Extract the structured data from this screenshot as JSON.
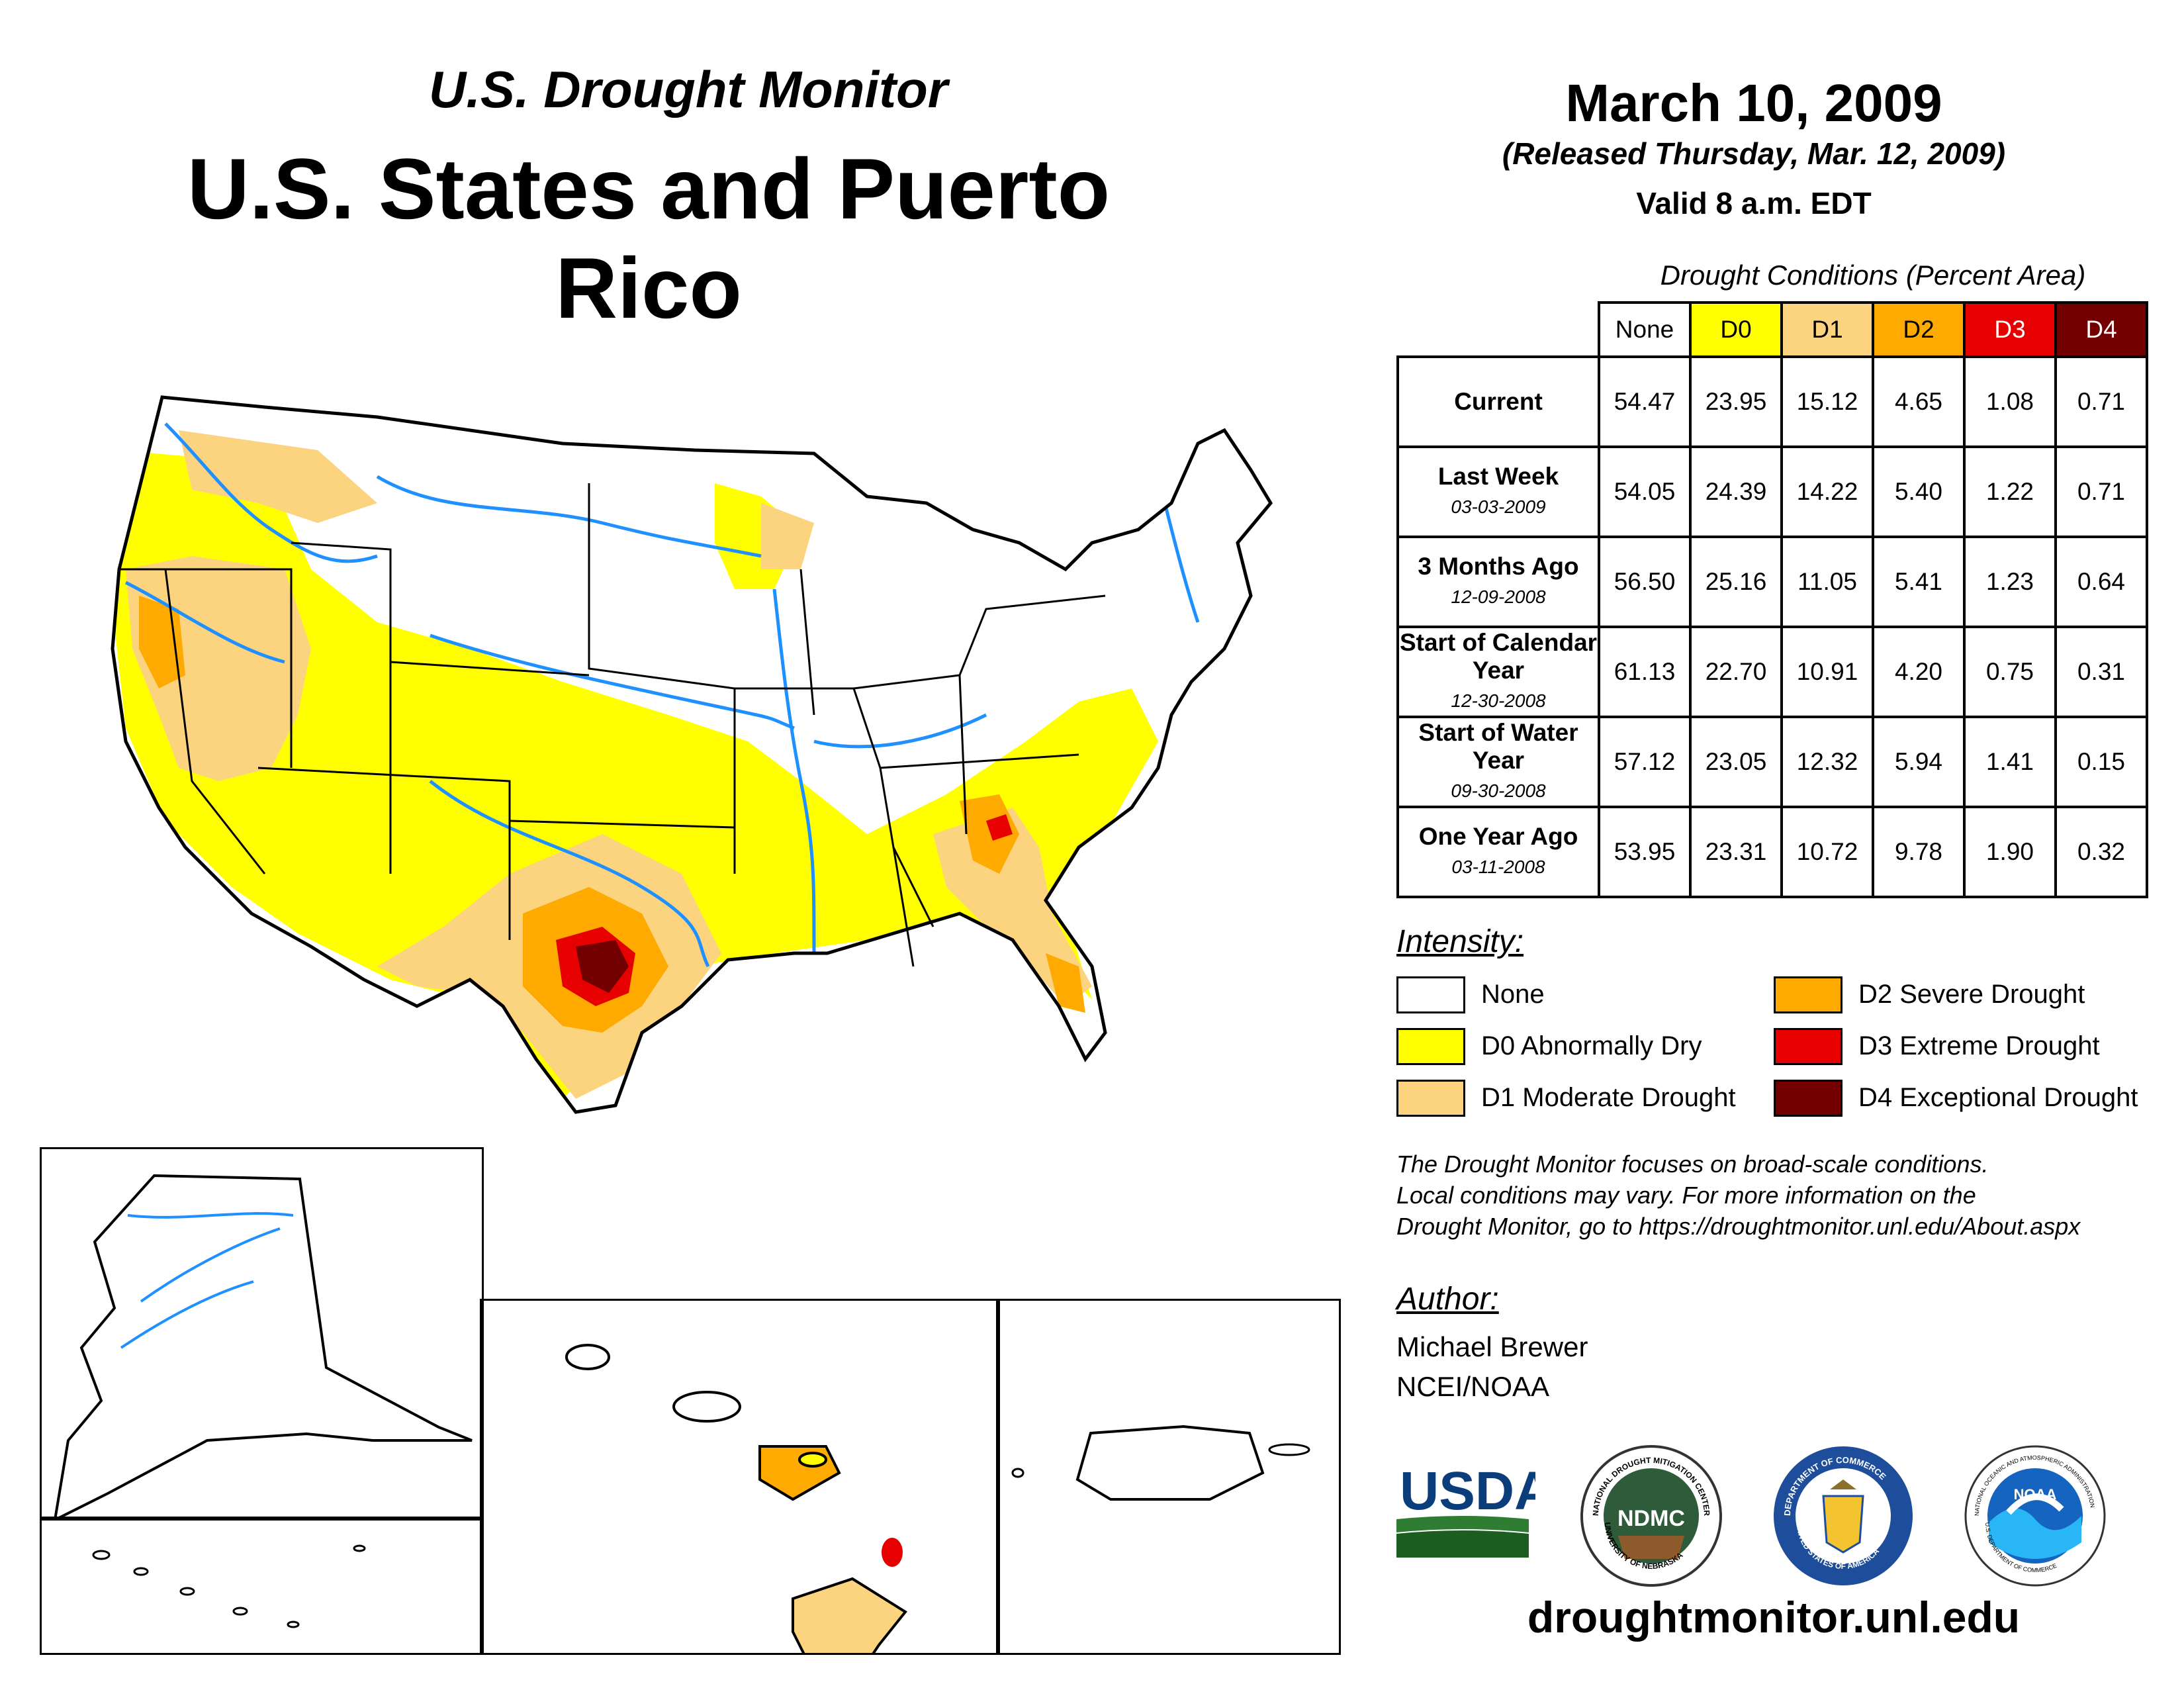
{
  "header": {
    "subtitle": "U.S. Drought Monitor",
    "title": "U.S. States and Puerto Rico",
    "date": "March 10, 2009",
    "released": "(Released Thursday, Mar. 12, 2009)",
    "valid": "Valid 8 a.m. EDT"
  },
  "table": {
    "caption": "Drought Conditions (Percent Area)",
    "columns": [
      "None",
      "D0",
      "D1",
      "D2",
      "D3",
      "D4"
    ],
    "column_colors": [
      "#ffffff",
      "#ffff00",
      "#fcd37f",
      "#ffaa00",
      "#e60000",
      "#730000"
    ],
    "rows": [
      {
        "label": "Current",
        "date": "",
        "values": [
          "54.47",
          "23.95",
          "15.12",
          "4.65",
          "1.08",
          "0.71"
        ]
      },
      {
        "label": "Last Week",
        "date": "03-03-2009",
        "values": [
          "54.05",
          "24.39",
          "14.22",
          "5.40",
          "1.22",
          "0.71"
        ]
      },
      {
        "label": "3 Months Ago",
        "date": "12-09-2008",
        "values": [
          "56.50",
          "25.16",
          "11.05",
          "5.41",
          "1.23",
          "0.64"
        ]
      },
      {
        "label": "Start of Calendar Year",
        "date": "12-30-2008",
        "values": [
          "61.13",
          "22.70",
          "10.91",
          "4.20",
          "0.75",
          "0.31"
        ]
      },
      {
        "label": "Start of Water Year",
        "date": "09-30-2008",
        "values": [
          "57.12",
          "23.05",
          "12.32",
          "5.94",
          "1.41",
          "0.15"
        ]
      },
      {
        "label": "One Year Ago",
        "date": "03-11-2008",
        "values": [
          "53.95",
          "23.31",
          "10.72",
          "9.78",
          "1.90",
          "0.32"
        ]
      }
    ]
  },
  "intensity": {
    "heading": "Intensity:",
    "items": [
      {
        "label": "None",
        "color": "#ffffff"
      },
      {
        "label": "D0 Abnormally Dry",
        "color": "#ffff00"
      },
      {
        "label": "D1 Moderate Drought",
        "color": "#fcd37f"
      },
      {
        "label": "D2 Severe Drought",
        "color": "#ffaa00"
      },
      {
        "label": "D3 Extreme Drought",
        "color": "#e60000"
      },
      {
        "label": "D4 Exceptional Drought",
        "color": "#730000"
      }
    ]
  },
  "note": {
    "line1": "The Drought Monitor focuses on broad-scale conditions.",
    "line2": "Local conditions may vary. For more information on the",
    "line3": "Drought Monitor, go to https://droughtmonitor.unl.edu/About.aspx"
  },
  "author": {
    "heading": "Author:",
    "name": "Michael Brewer",
    "org": "NCEI/NOAA"
  },
  "logos": {
    "usda": "USDA",
    "ndmc": "NDMC",
    "ndmc_ring_top": "NATIONAL DROUGHT MITIGATION CENTER",
    "ndmc_ring_bottom": "UNIVERSITY OF NEBRASKA",
    "commerce_ring_top": "DEPARTMENT OF COMMERCE",
    "commerce_ring_bottom": "UNITED STATES OF AMERICA",
    "noaa": "NOAA",
    "noaa_ring_top": "NATIONAL OCEANIC AND ATMOSPHERIC ADMINISTRATION",
    "noaa_ring_bottom": "U.S. DEPARTMENT OF COMMERCE"
  },
  "footer": {
    "url": "droughtmonitor.unl.edu"
  },
  "colors": {
    "water": "#1e90ff",
    "d0": "#ffff00",
    "d1": "#fcd37f",
    "d2": "#ffaa00",
    "d3": "#e60000",
    "d4": "#730000"
  }
}
